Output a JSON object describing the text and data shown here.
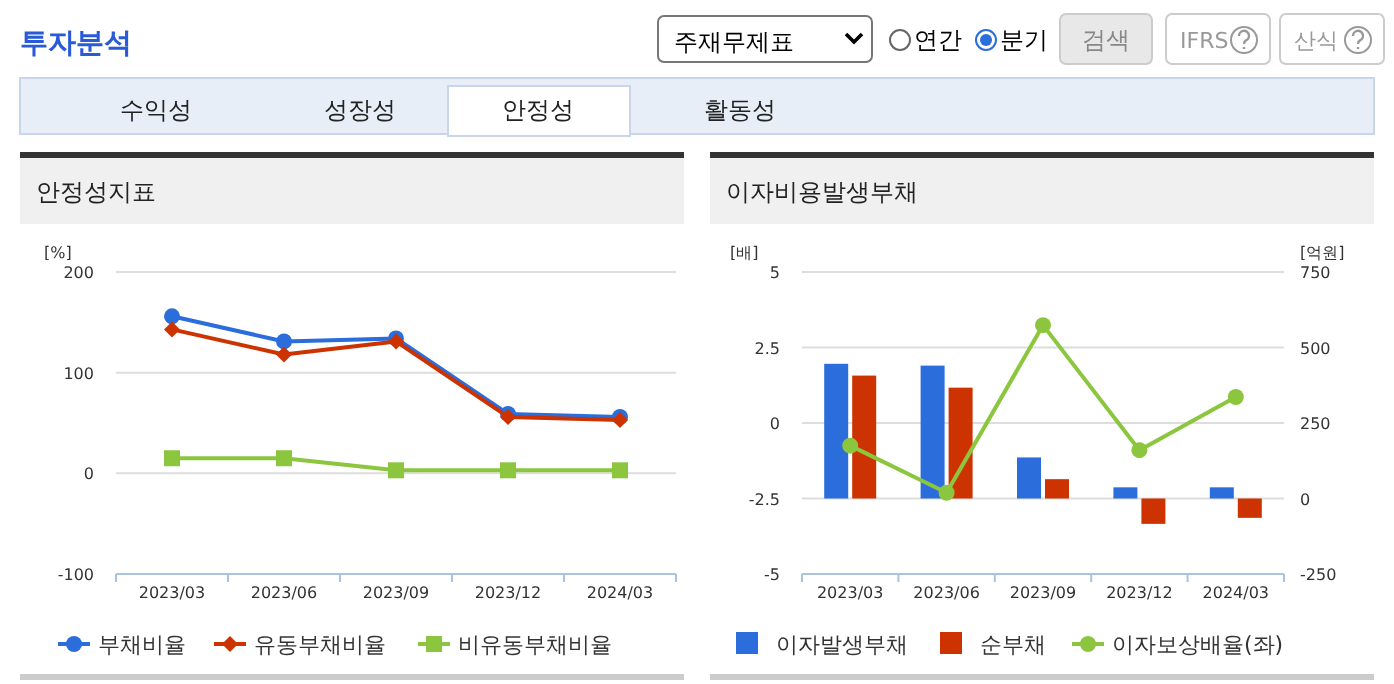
{
  "chart_data": [
    {
      "type": "other",
      "title": "투자분석",
      "annotations": [
        "주재무제표",
        "연간",
        "분기",
        "검색",
        "IFRS",
        "산식",
        "수익성",
        "성장성",
        "안정성",
        "활동성"
      ]
    },
    {
      "type": "line",
      "title": "안정성지표",
      "ylabel": "[%]",
      "categories": [
        "2023/03",
        "2023/06",
        "2023/09",
        "2023/12",
        "2024/03"
      ],
      "ylim": [
        -100,
        200
      ],
      "yticks": [
        -100,
        0,
        100,
        200
      ],
      "grid": "y",
      "legend": "bottom",
      "series": [
        {
          "name": "부채비율",
          "color": "#2a6ddb",
          "marker": "circle",
          "values": [
            156,
            131,
            134,
            59,
            56
          ]
        },
        {
          "name": "유동부채비율",
          "color": "#cc3300",
          "marker": "diamond",
          "values": [
            143,
            118,
            131,
            56,
            53
          ]
        },
        {
          "name": "비유동부채비율",
          "color": "#8cc63f",
          "marker": "square",
          "values": [
            15,
            15,
            3,
            3,
            3
          ]
        }
      ]
    },
    {
      "type": "bar",
      "title": "이자비용발생부채",
      "ylabel": "[배]",
      "y2label": "[억원]",
      "categories": [
        "2023/03",
        "2023/06",
        "2023/09",
        "2023/12",
        "2024/03"
      ],
      "ylim": [
        -5,
        5
      ],
      "yticks": [
        -5,
        -2.5,
        0,
        2.5,
        5
      ],
      "y2lim": [
        -250,
        750
      ],
      "y2ticks": [
        -250,
        0,
        250,
        500,
        750
      ],
      "grid": "y",
      "legend": "bottom",
      "series": [
        {
          "name": "이자발생부채",
          "color": "#2a6ddb",
          "axis": "y2",
          "values": [
            446,
            440,
            136,
            37,
            37
          ]
        },
        {
          "name": "순부채",
          "color": "#cc3300",
          "axis": "y2",
          "values": [
            407,
            367,
            64,
            -84,
            -64
          ]
        },
        {
          "name": "이자보상배율(좌)",
          "type": "line",
          "color": "#8cc63f",
          "axis": "y",
          "marker": "circle",
          "values": [
            -0.75,
            -2.31,
            3.24,
            -0.9,
            0.86
          ]
        }
      ]
    }
  ]
}
